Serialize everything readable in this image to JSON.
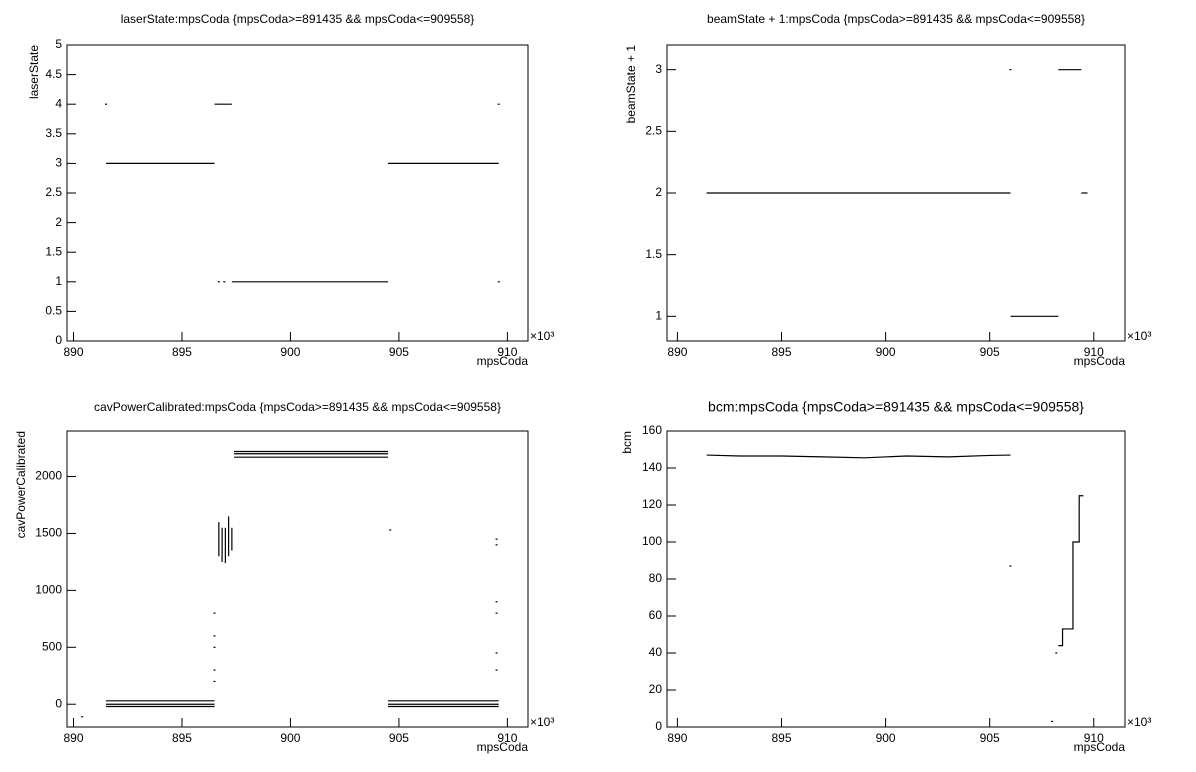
{
  "chart_data": [
    {
      "type": "scatter",
      "title": "laserState:mpsCoda {mpsCoda>=891435 && mpsCoda<=909558}",
      "x_label": "mpsCoda",
      "y_label": "laserState",
      "x_exponent": "×10³",
      "color": "#000000",
      "x": [
        891.5,
        896.5,
        null,
        896.5,
        897.3,
        null,
        897.3,
        904.5,
        null,
        904.5,
        909.6,
        null,
        891.5,
        null,
        896.7,
        null,
        896.95,
        null,
        909.6,
        null,
        909.6
      ],
      "values": [
        3,
        3,
        null,
        4,
        4,
        null,
        1,
        1,
        null,
        3,
        3,
        null,
        4,
        null,
        1,
        null,
        1,
        null,
        4,
        null,
        1
      ],
      "xlim": [
        889.7,
        910.95
      ],
      "ylim": [
        0,
        5
      ],
      "xticks": [
        890,
        895,
        900,
        905,
        910
      ],
      "yticks": [
        0,
        0.5,
        1,
        1.5,
        2,
        2.5,
        3,
        3.5,
        4,
        4.5,
        5
      ]
    },
    {
      "type": "scatter",
      "title": "beamState + 1:mpsCoda {mpsCoda>=891435 && mpsCoda<=909558}",
      "x_label": "mpsCoda",
      "y_label": "beamState + 1",
      "x_exponent": "×10³",
      "color": "#000000",
      "x": [
        891.4,
        906,
        null,
        906,
        908.3,
        null,
        908.3,
        909.4,
        null,
        909.4,
        909.7,
        null,
        906
      ],
      "values": [
        2,
        2,
        null,
        1,
        1,
        null,
        3,
        3,
        null,
        2,
        2,
        null,
        3
      ],
      "xlim": [
        889.5,
        911.5
      ],
      "ylim": [
        0.8,
        3.2
      ],
      "xticks": [
        890,
        895,
        900,
        905,
        910
      ],
      "yticks": [
        1,
        1.5,
        2,
        2.5,
        3
      ]
    },
    {
      "type": "scatter",
      "title": "cavPowerCalibrated:mpsCoda {mpsCoda>=891435 && mpsCoda<=909558}",
      "x_label": "mpsCoda",
      "y_label": "cavPowerCalibrated",
      "x_exponent": "×10³",
      "color": "#000000",
      "x": [
        891.5,
        896.5,
        null,
        891.5,
        896.5,
        null,
        891.5,
        896.5,
        null,
        896.7,
        896.7,
        null,
        896.85,
        896.85,
        null,
        897.0,
        897.0,
        null,
        897.15,
        897.15,
        null,
        897.3,
        897.3,
        null,
        897.4,
        904.5,
        null,
        897.4,
        904.5,
        null,
        897.4,
        904.5,
        null,
        904.5,
        909.6,
        null,
        904.5,
        909.6,
        null,
        904.5,
        909.6,
        null,
        896.5,
        null,
        896.5,
        null,
        896.5,
        null,
        896.5,
        null,
        896.5,
        null,
        909.5,
        null,
        909.5,
        null,
        909.5,
        null,
        909.5,
        null,
        909.5,
        null,
        909.5,
        null,
        904.6,
        null,
        890.4
      ],
      "values": [
        30,
        30,
        null,
        0,
        0,
        null,
        -20,
        -20,
        null,
        1300,
        1600,
        null,
        1250,
        1550,
        null,
        1240,
        1550,
        null,
        1300,
        1650,
        null,
        1350,
        1550,
        null,
        2220,
        2220,
        null,
        2200,
        2200,
        null,
        2170,
        2170,
        null,
        30,
        30,
        null,
        0,
        0,
        null,
        -20,
        -20,
        null,
        800,
        null,
        600,
        null,
        500,
        null,
        300,
        null,
        200,
        null,
        1450,
        null,
        1400,
        null,
        900,
        null,
        800,
        null,
        450,
        null,
        300,
        null,
        1530,
        null,
        -110
      ],
      "xlim": [
        889.7,
        910.95
      ],
      "ylim": [
        -200,
        2400
      ],
      "xticks": [
        890,
        895,
        900,
        905,
        910
      ],
      "yticks": [
        0,
        500,
        1000,
        1500,
        2000
      ]
    },
    {
      "type": "scatter",
      "title": "bcm:mpsCoda {mpsCoda>=891435 && mpsCoda<=909558}",
      "x_label": "mpsCoda",
      "y_label": "bcm",
      "x_exponent": "×10³",
      "color": "#000000",
      "x": [
        891.4,
        893,
        895,
        897,
        899,
        901,
        903,
        905,
        906,
        null,
        906,
        null,
        908.2,
        null,
        908.3,
        908.5,
        908.5,
        909,
        909,
        909.3,
        909.3,
        909.5,
        null,
        908
      ],
      "values": [
        147,
        146.5,
        146.5,
        146,
        145.5,
        146.5,
        146,
        146.8,
        147,
        null,
        87,
        null,
        40,
        null,
        44,
        44,
        53,
        53,
        100,
        100,
        125,
        125,
        null,
        3
      ],
      "xlim": [
        889.5,
        911.5
      ],
      "ylim": [
        0,
        160
      ],
      "xticks": [
        890,
        895,
        900,
        905,
        910
      ],
      "yticks": [
        0,
        20,
        40,
        60,
        80,
        100,
        120,
        140,
        160
      ]
    }
  ]
}
